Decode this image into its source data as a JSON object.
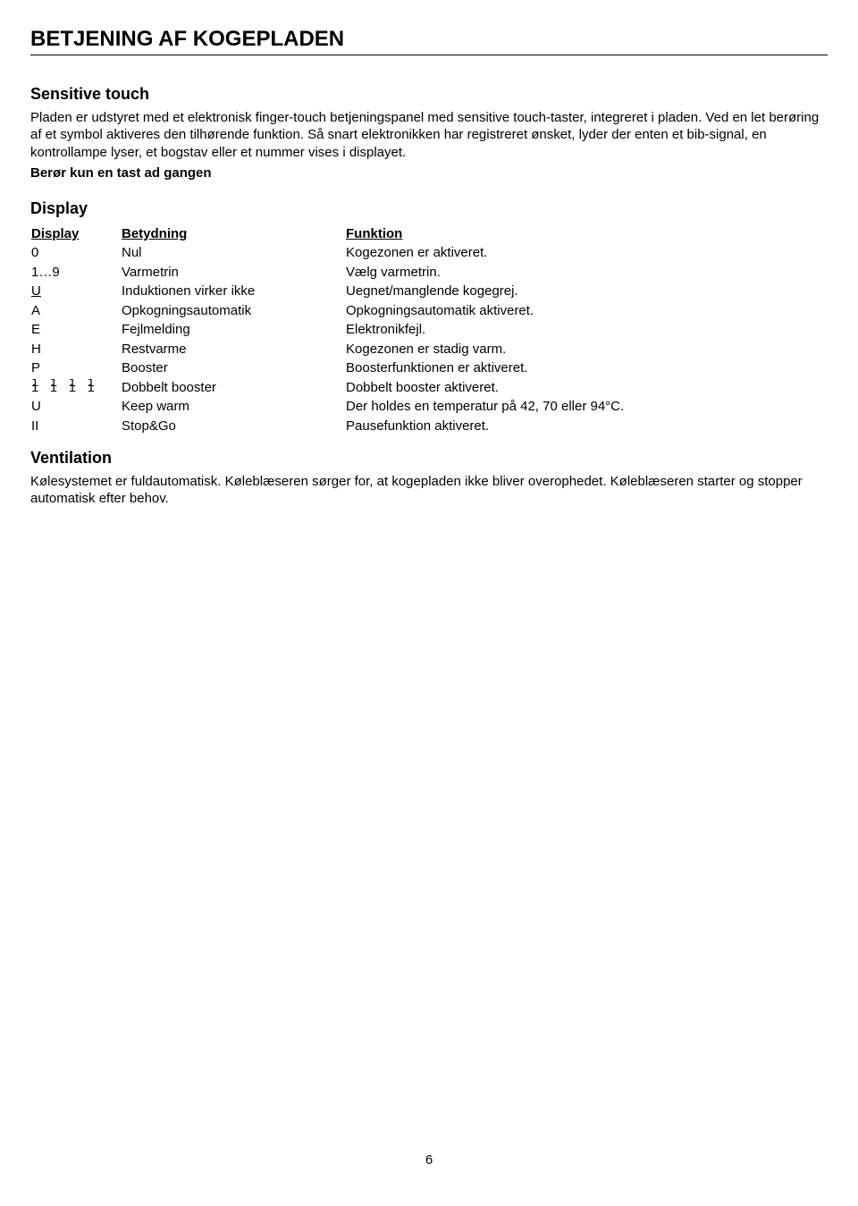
{
  "title": "BETJENING AF KOGEPLADEN",
  "sensitive": {
    "heading": "Sensitive touch",
    "para1": "Pladen er udstyret med et elektronisk finger-touch betjeningspanel med sensitive touch-taster, integreret i pladen. Ved en let berøring af et symbol aktiveres den tilhørende funktion. Så snart elektronikken har registreret ønsket, lyder der enten et bib-signal, en kontrollampe lyser, et bogstav eller et nummer vises i displayet.",
    "para2": "Berør kun en tast ad gangen"
  },
  "display": {
    "heading": "Display",
    "headers": {
      "c0": "Display",
      "c1": "Betydning",
      "c2": "Funktion"
    },
    "rows": [
      {
        "c0": "0",
        "c1": "Nul",
        "c2": "Kogezonen er aktiveret."
      },
      {
        "c0": "1…9",
        "c1": "Varmetrin",
        "c2": "Vælg varmetrin."
      },
      {
        "c0": "U",
        "c0_underline": true,
        "c1": "Induktionen virker ikke",
        "c2": "Uegnet/manglende kogegrej."
      },
      {
        "c0": "A",
        "c1": "Opkogningsautomatik",
        "c2": "Opkogningsautomatik aktiveret."
      },
      {
        "c0": "E",
        "c1": "Fejlmelding",
        "c2": "Elektronikfejl."
      },
      {
        "c0": "H",
        "c1": "Restvarme",
        "c2": "Kogezonen er stadig varm."
      },
      {
        "c0": "P",
        "c1": "Booster",
        "c2": "Boosterfunktionen er aktiveret."
      },
      {
        "c0": "",
        "c0_glyph": "dbl",
        "c1": "Dobbelt booster",
        "c2": "Dobbelt booster aktiveret."
      },
      {
        "c0": "U",
        "c1": "Keep warm",
        "c2": "Der holdes en temperatur på 42, 70 eller 94°C."
      },
      {
        "c0": "II",
        "c1": "Stop&Go",
        "c2": "Pausefunktion aktiveret."
      }
    ]
  },
  "ventilation": {
    "heading": "Ventilation",
    "para": "Kølesystemet er fuldautomatisk. Køleblæseren sørger for, at kogepladen ikke bliver overophedet. Køleblæseren starter og stopper automatisk efter behov."
  },
  "page_number": "6"
}
